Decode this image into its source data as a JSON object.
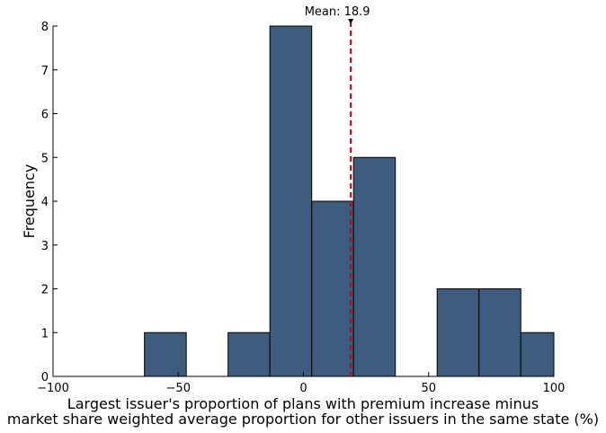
{
  "chart_data": {
    "type": "bar",
    "subtype": "histogram",
    "bins": [
      {
        "x0": -63.5,
        "x1": -46.8,
        "count": 1
      },
      {
        "x0": -30.1,
        "x1": -13.4,
        "count": 1
      },
      {
        "x0": -13.4,
        "x1": 3.3,
        "count": 8
      },
      {
        "x0": 3.3,
        "x1": 20.0,
        "count": 4
      },
      {
        "x0": 20.0,
        "x1": 36.7,
        "count": 5
      },
      {
        "x0": 53.4,
        "x1": 70.1,
        "count": 2
      },
      {
        "x0": 70.1,
        "x1": 86.8,
        "count": 2
      },
      {
        "x0": 86.8,
        "x1": 103.5,
        "count": 1
      }
    ],
    "mean": 18.9,
    "mean_label": "Mean: 18.9",
    "xlim": [
      -100,
      100
    ],
    "ylim": [
      0,
      8
    ],
    "x_ticks": [
      -100,
      -50,
      0,
      50,
      100
    ],
    "x_tick_labels": [
      "−100",
      "−50",
      "0",
      "50",
      "100"
    ],
    "y_ticks": [
      0,
      1,
      2,
      3,
      4,
      5,
      6,
      7,
      8
    ],
    "y_tick_labels": [
      "0",
      "1",
      "2",
      "3",
      "4",
      "5",
      "6",
      "7",
      "8"
    ],
    "xlabel_lines": [
      "Largest issuer's proportion of plans with premium increase minus",
      "market share weighted average proportion for other issuers in the same state (%)"
    ],
    "ylabel": "Frequency",
    "grid": false,
    "bar_color": "#3e5c7d",
    "mean_line_color": "#cc0000"
  }
}
